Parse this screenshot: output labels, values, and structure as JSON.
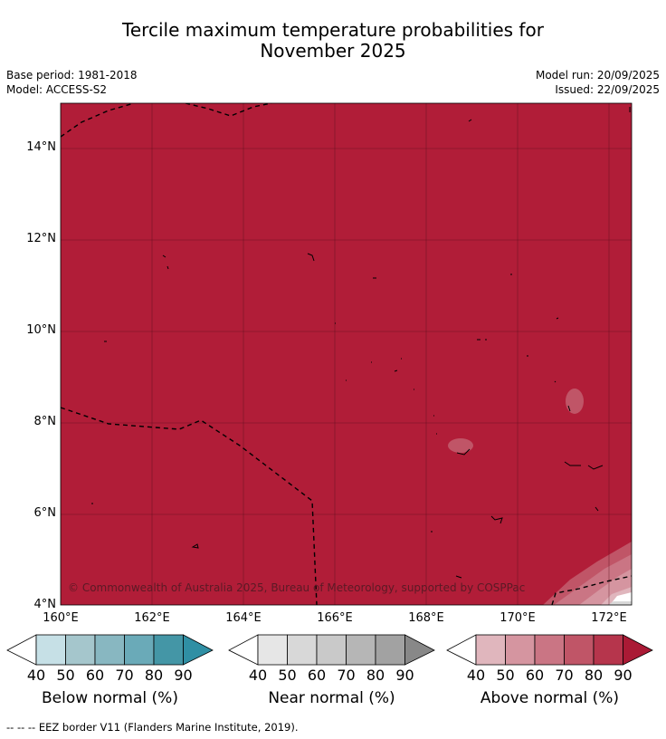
{
  "title": {
    "line1": "Tercile maximum temperature probabilities for",
    "line2": "November 2025"
  },
  "meta": {
    "base_period": "Base period: 1981-2018",
    "model": "Model: ACCESS-S2",
    "model_run": "Model run: 20/09/2025",
    "issued": "Issued: 22/09/2025"
  },
  "map": {
    "y_ticks": [
      "14°N",
      "12°N",
      "10°N",
      "8°N",
      "6°N",
      "4°N"
    ],
    "x_ticks": [
      "160°E",
      "162°E",
      "164°E",
      "166°E",
      "168°E",
      "170°E",
      "172°E"
    ],
    "fill_category": "Above normal",
    "fill_probability_range": "80-90%",
    "copyright": "© Commonwealth of Australia 2025, Bureau of Meteorology, supported by COSPPac",
    "colors": {
      "dominant": "#b11d38",
      "above_levels": [
        "#e0b6bd",
        "#d595a0",
        "#ca7584",
        "#c05567",
        "#b6354c",
        "#aa1a35"
      ],
      "below_levels": [
        "#c6e0e6",
        "#a5c6cc",
        "#88b7c1",
        "#6aaab8",
        "#4496a6",
        "#2f8fa4"
      ],
      "near_levels": [
        "#e6e6e6",
        "#d8d8d8",
        "#c9c9c9",
        "#b6b6b6",
        "#a2a2a2",
        "#888888"
      ]
    }
  },
  "legend": {
    "ticks": [
      "40",
      "50",
      "60",
      "70",
      "80",
      "90"
    ],
    "below_label": "Below normal (%)",
    "near_label": "Near normal (%)",
    "above_label": "Above normal (%)"
  },
  "footnote": "-- -- -- EEZ border V11 (Flanders Marine Institute, 2019)."
}
